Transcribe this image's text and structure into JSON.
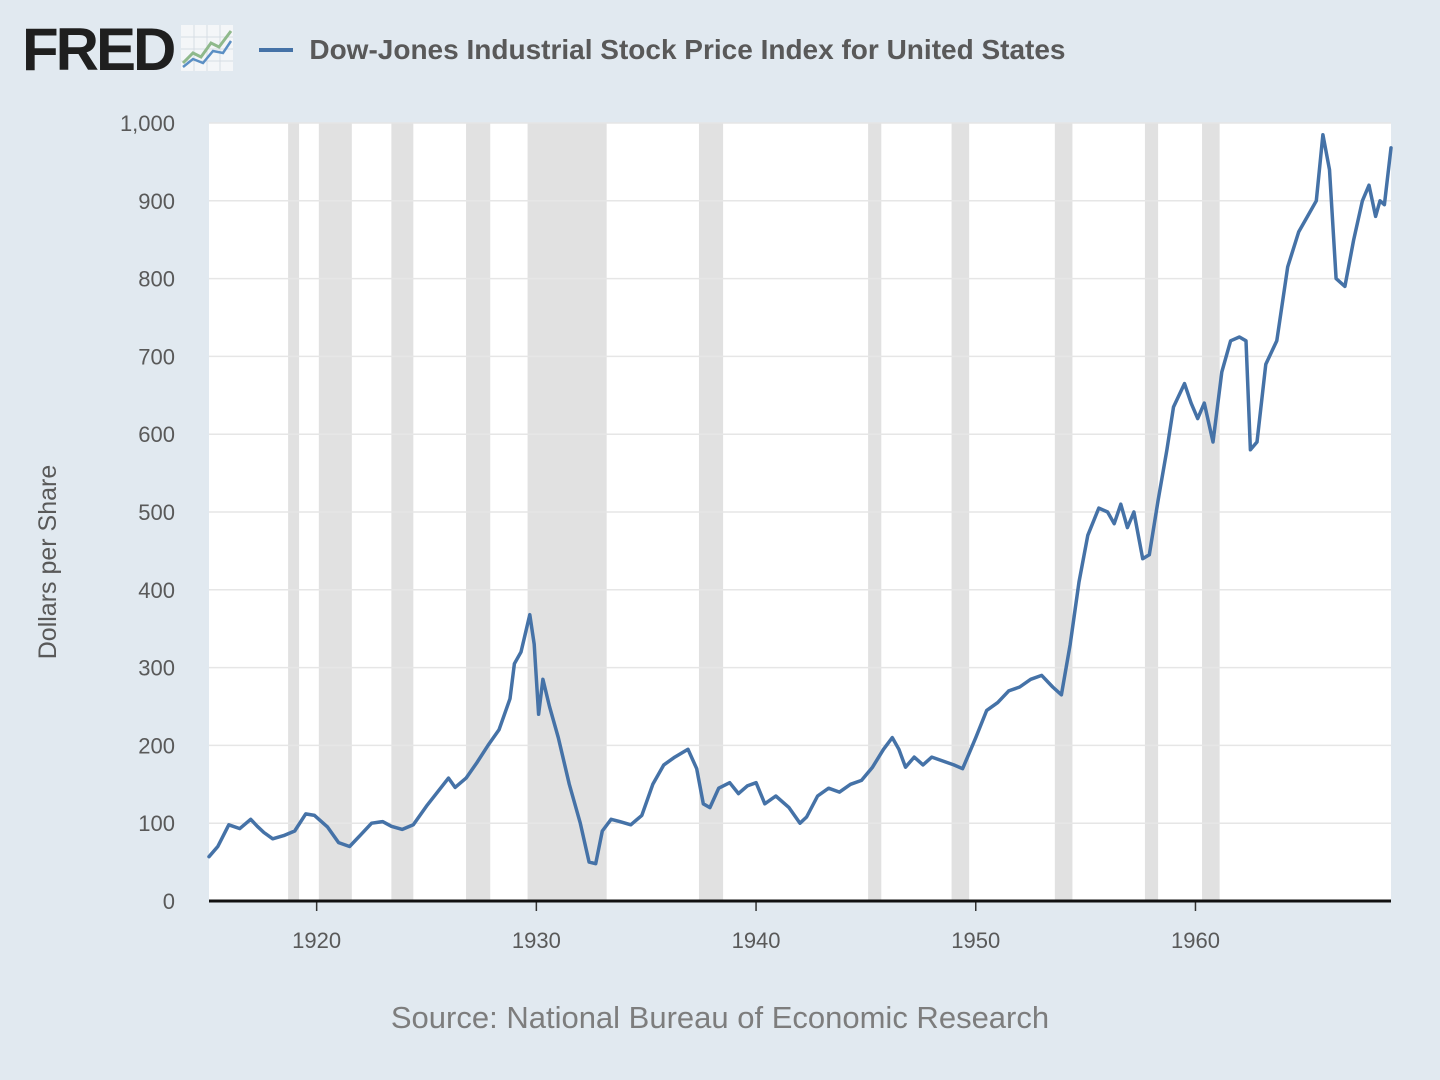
{
  "header": {
    "brand": "FRED",
    "brand_icon": "fred-line-chart-logo-icon",
    "legend_label": "Dow-Jones Industrial Stock Price Index for United States"
  },
  "colors": {
    "series": "#4572a7",
    "recession": "#e1e1e1",
    "background": "#e1e9f0",
    "plot": "#ffffff"
  },
  "source": "Source: National Bureau of Economic Research",
  "chart_data": {
    "type": "line",
    "title": "Dow-Jones Industrial Stock Price Index for United States",
    "xlabel": "",
    "ylabel": "Dollars per Share",
    "xlim": [
      1915.1,
      1968.9
    ],
    "ylim": [
      0,
      1000
    ],
    "grid": true,
    "legend": "top",
    "x_ticks": [
      1920,
      1930,
      1940,
      1950,
      1960
    ],
    "y_ticks": [
      0,
      100,
      200,
      300,
      400,
      500,
      600,
      700,
      800,
      900,
      1000
    ],
    "y_tick_labels": [
      "0",
      "100",
      "200",
      "300",
      "400",
      "500",
      "600",
      "700",
      "800",
      "900",
      "1,000"
    ],
    "recessions": [
      [
        1918.7,
        1919.2
      ],
      [
        1920.1,
        1921.6
      ],
      [
        1923.4,
        1924.4
      ],
      [
        1926.8,
        1927.9
      ],
      [
        1929.6,
        1933.2
      ],
      [
        1937.4,
        1938.5
      ],
      [
        1945.1,
        1945.7
      ],
      [
        1948.9,
        1949.7
      ],
      [
        1953.6,
        1954.4
      ],
      [
        1957.7,
        1958.3
      ],
      [
        1960.3,
        1961.1
      ]
    ],
    "series": [
      {
        "name": "Dow-Jones Industrial Stock Price Index for United States",
        "x": [
          1915.1,
          1915.5,
          1916.0,
          1916.5,
          1917.0,
          1917.3,
          1917.6,
          1918.0,
          1918.5,
          1919.0,
          1919.5,
          1919.9,
          1920.5,
          1921.0,
          1921.5,
          1922.0,
          1922.5,
          1923.0,
          1923.4,
          1923.9,
          1924.4,
          1925.0,
          1925.5,
          1926.0,
          1926.3,
          1926.8,
          1927.3,
          1927.8,
          1928.3,
          1928.8,
          1929.0,
          1929.3,
          1929.7,
          1929.9,
          1930.1,
          1930.3,
          1930.6,
          1931.0,
          1931.5,
          1932.0,
          1932.4,
          1932.7,
          1933.0,
          1933.4,
          1933.8,
          1934.3,
          1934.8,
          1935.3,
          1935.8,
          1936.3,
          1936.9,
          1937.3,
          1937.6,
          1937.9,
          1938.3,
          1938.8,
          1939.2,
          1939.6,
          1940.0,
          1940.4,
          1940.9,
          1941.5,
          1942.0,
          1942.3,
          1942.8,
          1943.3,
          1943.8,
          1944.3,
          1944.8,
          1945.3,
          1945.8,
          1946.2,
          1946.5,
          1946.8,
          1947.2,
          1947.6,
          1948.0,
          1948.5,
          1949.0,
          1949.4,
          1949.7,
          1950.0,
          1950.5,
          1951.0,
          1951.5,
          1952.0,
          1952.5,
          1953.0,
          1953.5,
          1953.9,
          1954.3,
          1954.7,
          1955.1,
          1955.6,
          1956.0,
          1956.3,
          1956.6,
          1956.9,
          1957.2,
          1957.6,
          1957.9,
          1958.3,
          1958.7,
          1959.0,
          1959.5,
          1959.8,
          1960.1,
          1960.4,
          1960.8,
          1961.2,
          1961.6,
          1962.0,
          1962.3,
          1962.5,
          1962.8,
          1963.2,
          1963.7,
          1964.2,
          1964.7,
          1965.1,
          1965.5,
          1965.8,
          1966.1,
          1966.4,
          1966.8,
          1967.2,
          1967.6,
          1967.9,
          1968.2,
          1968.4,
          1968.6,
          1968.9
        ],
        "values": [
          57,
          70,
          98,
          93,
          105,
          96,
          88,
          80,
          84,
          90,
          112,
          110,
          95,
          75,
          70,
          85,
          100,
          102,
          96,
          92,
          98,
          122,
          140,
          158,
          146,
          158,
          178,
          200,
          220,
          260,
          305,
          320,
          368,
          330,
          240,
          285,
          250,
          210,
          150,
          100,
          50,
          48,
          90,
          105,
          102,
          98,
          110,
          150,
          175,
          185,
          195,
          170,
          125,
          120,
          145,
          152,
          138,
          148,
          152,
          125,
          135,
          120,
          100,
          108,
          135,
          145,
          140,
          150,
          155,
          172,
          195,
          210,
          195,
          172,
          185,
          175,
          185,
          180,
          175,
          170,
          190,
          210,
          245,
          255,
          270,
          275,
          285,
          290,
          275,
          265,
          330,
          410,
          470,
          505,
          500,
          485,
          510,
          480,
          500,
          440,
          445,
          515,
          580,
          635,
          665,
          640,
          620,
          640,
          590,
          680,
          720,
          725,
          720,
          580,
          590,
          690,
          720,
          815,
          860,
          880,
          900,
          985,
          940,
          800,
          790,
          850,
          900,
          920,
          880,
          900,
          895,
          968
        ]
      }
    ]
  }
}
